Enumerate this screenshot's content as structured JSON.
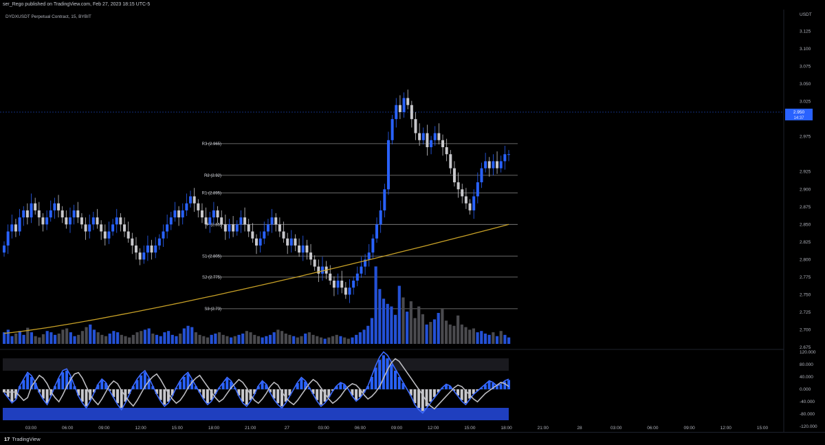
{
  "header": {
    "publisher": "ser_Rego published on TradingView.com, Feb 27, 2023 18:15 UTC-5",
    "symbol": "DYDXUSDT Perpetual Contract, 15, BYBIT"
  },
  "footer": {
    "logo_mark": "17",
    "logo_text": "TradingView"
  },
  "colors": {
    "up": "#2962ff",
    "down": "#c8c8cc",
    "vol_up": "#2451d6",
    "vol_down": "#4a4a4e",
    "ma": "#c9a227",
    "pivot_line": "#8a8a8a",
    "price_tag": "#2962ff"
  },
  "chart_data": [
    {
      "type": "candlestick",
      "panel": "price",
      "y_axis_unit": "USDT",
      "ylim": [
        2.675,
        3.15
      ],
      "y_ticks": [
        "3.125",
        "3.100",
        "3.075",
        "3.050",
        "3.025",
        "3.000",
        "2.975",
        "2.925",
        "2.900",
        "2.875",
        "2.850",
        "2.825",
        "2.800",
        "2.775",
        "2.750",
        "2.725",
        "2.700",
        "2.675"
      ],
      "last_price": "2.950",
      "countdown": "14:37",
      "pivots": [
        {
          "label": "R3 (2.965)",
          "value": 2.965
        },
        {
          "label": "R2 (2.92)",
          "value": 2.92
        },
        {
          "label": "R1 (2.895)",
          "value": 2.895
        },
        {
          "label": "P (2.85)",
          "value": 2.85
        },
        {
          "label": "S1 (2.805)",
          "value": 2.805
        },
        {
          "label": "S2 (2.775)",
          "value": 2.775
        },
        {
          "label": "S3 (2.73)",
          "value": 2.73
        }
      ],
      "closes": [
        2.82,
        2.84,
        2.85,
        2.84,
        2.86,
        2.87,
        2.86,
        2.88,
        2.87,
        2.86,
        2.85,
        2.86,
        2.87,
        2.88,
        2.87,
        2.86,
        2.85,
        2.86,
        2.87,
        2.86,
        2.85,
        2.84,
        2.85,
        2.86,
        2.85,
        2.84,
        2.83,
        2.84,
        2.85,
        2.86,
        2.85,
        2.84,
        2.83,
        2.82,
        2.81,
        2.8,
        2.81,
        2.82,
        2.81,
        2.82,
        2.83,
        2.84,
        2.85,
        2.86,
        2.87,
        2.86,
        2.87,
        2.88,
        2.89,
        2.88,
        2.87,
        2.86,
        2.85,
        2.86,
        2.87,
        2.86,
        2.85,
        2.84,
        2.85,
        2.84,
        2.85,
        2.86,
        2.85,
        2.84,
        2.83,
        2.82,
        2.83,
        2.84,
        2.85,
        2.86,
        2.85,
        2.84,
        2.83,
        2.82,
        2.83,
        2.82,
        2.81,
        2.82,
        2.81,
        2.8,
        2.79,
        2.78,
        2.79,
        2.78,
        2.77,
        2.76,
        2.77,
        2.76,
        2.75,
        2.76,
        2.77,
        2.78,
        2.79,
        2.8,
        2.81,
        2.83,
        2.85,
        2.87,
        2.9,
        2.97,
        3.0,
        3.02,
        3.01,
        3.03,
        3.02,
        3.0,
        2.98,
        2.97,
        2.98,
        2.96,
        2.97,
        2.98,
        2.97,
        2.96,
        2.95,
        2.93,
        2.91,
        2.9,
        2.89,
        2.88,
        2.87,
        2.89,
        2.91,
        2.93,
        2.94,
        2.93,
        2.94,
        2.93,
        2.94,
        2.95,
        2.95
      ],
      "ma": {
        "name": "",
        "start": 2.695,
        "end": 2.85
      }
    },
    {
      "type": "bar",
      "panel": "volume",
      "values": [
        18,
        22,
        12,
        16,
        20,
        14,
        25,
        18,
        12,
        10,
        15,
        20,
        18,
        14,
        16,
        22,
        24,
        18,
        12,
        14,
        20,
        26,
        30,
        22,
        18,
        14,
        12,
        16,
        20,
        18,
        14,
        12,
        10,
        14,
        18,
        20,
        22,
        24,
        16,
        14,
        12,
        18,
        20,
        14,
        12,
        16,
        24,
        28,
        26,
        18,
        14,
        12,
        10,
        14,
        16,
        18,
        14,
        12,
        10,
        12,
        14,
        16,
        20,
        18,
        14,
        12,
        10,
        12,
        14,
        18,
        22,
        20,
        16,
        14,
        12,
        10,
        12,
        16,
        18,
        14,
        12,
        10,
        8,
        10,
        12,
        14,
        12,
        10,
        8,
        10,
        14,
        18,
        22,
        28,
        40,
        120,
        85,
        70,
        62,
        58,
        45,
        90,
        72,
        50,
        66,
        40,
        58,
        46,
        30,
        34,
        38,
        48,
        54,
        36,
        30,
        28,
        44,
        30,
        26,
        22,
        24,
        18,
        20,
        16,
        14,
        18,
        12,
        20,
        14,
        10
      ],
      "ylim": [
        0,
        130
      ]
    },
    {
      "type": "histogram",
      "panel": "oscillator",
      "ylim": [
        -120,
        120
      ],
      "y_ticks": [
        "120.000",
        "80.000",
        "40.000",
        "0.000",
        "-40.000",
        "-80.000",
        "-120.000"
      ],
      "values": [
        -10,
        -25,
        -40,
        -30,
        10,
        30,
        50,
        40,
        20,
        -10,
        -30,
        -45,
        -20,
        10,
        35,
        55,
        60,
        40,
        10,
        -20,
        -40,
        -55,
        -35,
        -10,
        15,
        30,
        20,
        -5,
        -25,
        -45,
        -60,
        -40,
        -15,
        10,
        30,
        45,
        55,
        35,
        10,
        -15,
        -35,
        -50,
        -40,
        -20,
        5,
        25,
        40,
        50,
        30,
        10,
        -10,
        -30,
        -45,
        -35,
        -15,
        5,
        20,
        35,
        25,
        5,
        -20,
        -40,
        -50,
        -35,
        -15,
        10,
        25,
        15,
        -10,
        -30,
        -45,
        -55,
        -40,
        -20,
        0,
        20,
        35,
        25,
        5,
        -15,
        -35,
        -50,
        -40,
        -25,
        -5,
        10,
        20,
        15,
        0,
        -20,
        -35,
        -25,
        -10,
        10,
        40,
        70,
        95,
        110,
        100,
        80,
        60,
        40,
        20,
        0,
        -20,
        -45,
        -60,
        -70,
        -55,
        -40,
        -25,
        -10,
        5,
        15,
        10,
        -5,
        -20,
        -35,
        -45,
        -30,
        -15,
        -5,
        5,
        15,
        25,
        20,
        10,
        15,
        25,
        30
      ]
    }
  ],
  "x_axis_labels": [
    "03:00",
    "06:00",
    "09:00",
    "12:00",
    "15:00",
    "18:00",
    "21:00",
    "27",
    "03:00",
    "06:00",
    "09:00",
    "12:00",
    "15:00",
    "18:00",
    "21:00",
    "28",
    "03:00",
    "06:00",
    "09:00",
    "12:00",
    "15:00"
  ]
}
